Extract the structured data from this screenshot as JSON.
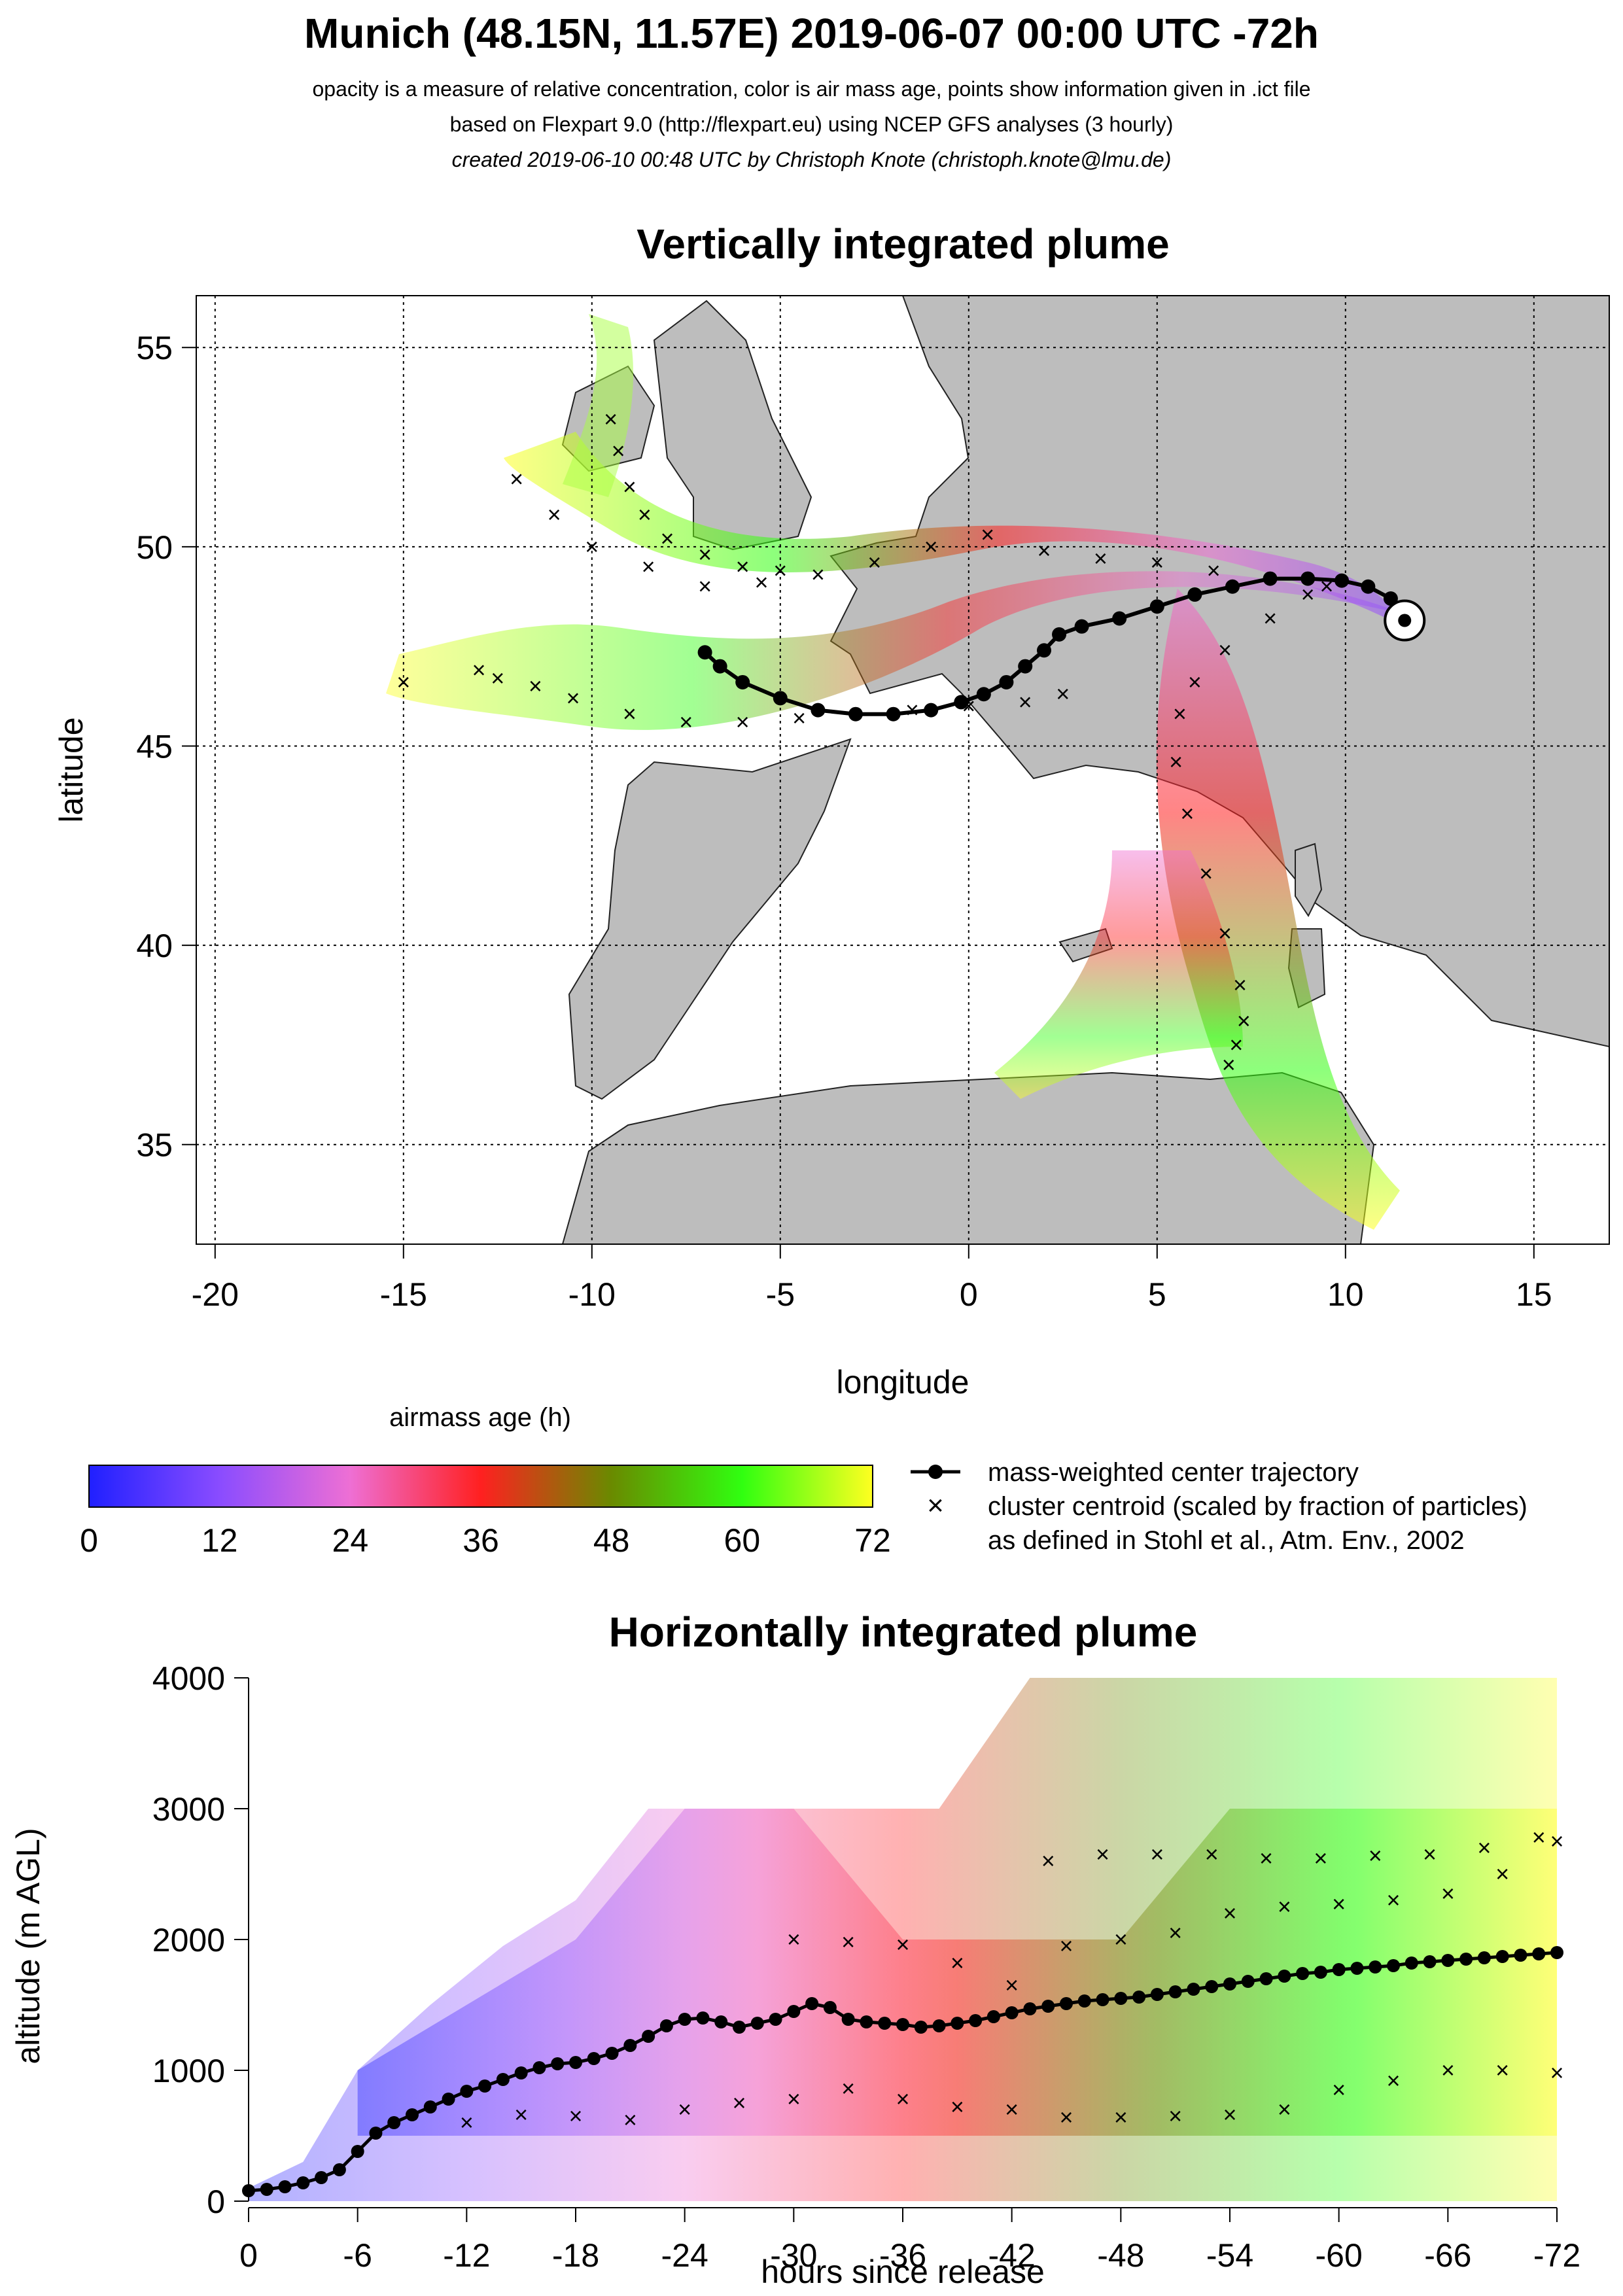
{
  "header": {
    "title": "Munich (48.15N, 11.57E) 2019-06-07 00:00 UTC -72h",
    "line1": "opacity is a measure of relative concentration, color is air mass age, points show information given in .ict file",
    "line2": "based on Flexpart 9.0 (http://flexpart.eu) using NCEP GFS analyses (3 hourly)",
    "line3": "created 2019-06-10 00:48 UTC by Christoph Knote (christoph.knote@lmu.de)"
  },
  "colors": {
    "age_0": "#2020ff",
    "age_12": "#8a4cff",
    "age_24": "#ee6fd4",
    "age_36": "#ff2020",
    "age_48": "#6a8a00",
    "age_60": "#30ff10",
    "age_72": "#ffff20",
    "land": "#bdbdbd",
    "sea": "#ffffff",
    "trajectory": "#000000"
  },
  "legend": {
    "colorbar_title": "airmass age (h)",
    "colorbar_ticks": [
      "0",
      "12",
      "24",
      "36",
      "48",
      "60",
      "72"
    ],
    "trajectory_label": "mass-weighted center trajectory",
    "centroid_label_1": "cluster centroid (scaled by fraction of particles)",
    "centroid_label_2": "as defined in Stohl et al., Atm. Env., 2002"
  },
  "chart_data": [
    {
      "type": "scatter",
      "title": "Vertically integrated plume",
      "xlabel": "longitude",
      "ylabel": "latitude",
      "xlim": [
        -20.5,
        17.0
      ],
      "ylim": [
        32.5,
        56.3
      ],
      "x_ticks": [
        -20,
        -15,
        -10,
        -5,
        0,
        5,
        10,
        15
      ],
      "x_tick_labels": [
        "-20",
        "-15",
        "-10",
        "-5",
        "0",
        "5",
        "10",
        "15"
      ],
      "y_ticks": [
        35,
        40,
        45,
        50,
        55
      ],
      "y_tick_labels": [
        "35",
        "40",
        "45",
        "50",
        "55"
      ],
      "grid": true,
      "release_point": {
        "lon": 11.57,
        "lat": 48.15
      },
      "series": [
        {
          "name": "mass-weighted center trajectory",
          "lon": [
            11.57,
            11.2,
            10.6,
            9.9,
            9.0,
            8.0,
            7.0,
            6.0,
            5.0,
            4.0,
            3.0,
            2.4,
            2.0,
            1.5,
            1.0,
            0.4,
            -0.2,
            -1.0,
            -2.0,
            -3.0,
            -4.0,
            -5.0,
            -6.0,
            -6.6,
            -7.0
          ],
          "lat": [
            48.15,
            48.7,
            49.0,
            49.15,
            49.2,
            49.2,
            49.0,
            48.8,
            48.5,
            48.2,
            48.0,
            47.8,
            47.4,
            47.0,
            46.6,
            46.3,
            46.1,
            45.9,
            45.8,
            45.8,
            45.9,
            46.2,
            46.6,
            47.0,
            47.35
          ]
        },
        {
          "name": "cluster centroid north-west",
          "lon": [
            9.5,
            8.0,
            6.5,
            5.0,
            3.5,
            2.0,
            0.5,
            -1.0,
            -2.5,
            -4.0,
            -5.5,
            -7.0,
            -8.5,
            -10.0,
            -11.0,
            -12.0
          ],
          "lat": [
            49.0,
            49.2,
            49.4,
            49.6,
            49.7,
            49.9,
            50.3,
            50.0,
            49.6,
            49.3,
            49.1,
            49.0,
            49.5,
            50.0,
            50.8,
            51.7
          ]
        },
        {
          "name": "cluster centroid west",
          "lon": [
            2.5,
            1.5,
            0.0,
            -1.5,
            -3.0,
            -4.5,
            -6.0,
            -7.5,
            -9.0,
            -10.5,
            -11.5,
            -12.5,
            -13.0,
            -15.0
          ],
          "lat": [
            46.3,
            46.1,
            46.0,
            45.9,
            45.8,
            45.7,
            45.6,
            45.6,
            45.8,
            46.2,
            46.5,
            46.7,
            46.9,
            46.6
          ]
        },
        {
          "name": "cluster centroid north",
          "lon": [
            -9.5,
            -9.3,
            -9.0,
            -8.6,
            -8.0,
            -7.0,
            -6.0,
            -5.0
          ],
          "lat": [
            53.2,
            52.4,
            51.5,
            50.8,
            50.2,
            49.8,
            49.5,
            49.4
          ]
        },
        {
          "name": "cluster centroid south",
          "lon": [
            9.0,
            8.0,
            6.8,
            6.0,
            5.6,
            5.5,
            5.8,
            6.3,
            6.8,
            7.2,
            7.3,
            7.1,
            6.9
          ],
          "lat": [
            48.8,
            48.2,
            47.4,
            46.6,
            45.8,
            44.6,
            43.3,
            41.8,
            40.3,
            39.0,
            38.1,
            37.5,
            37.0
          ]
        }
      ]
    },
    {
      "type": "scatter",
      "title": "Horizontally integrated plume",
      "xlabel": "hours since release",
      "ylabel": "altitude (m AGL)",
      "xlim": [
        0,
        -72
      ],
      "ylim": [
        0,
        4000
      ],
      "x_ticks": [
        0,
        -6,
        -12,
        -18,
        -24,
        -30,
        -36,
        -42,
        -48,
        -54,
        -60,
        -66,
        -72
      ],
      "x_tick_labels": [
        "0",
        "-6",
        "-12",
        "-18",
        "-24",
        "-30",
        "-36",
        "-42",
        "-48",
        "-54",
        "-60",
        "-66",
        "-72"
      ],
      "y_ticks": [
        0,
        1000,
        2000,
        3000,
        4000
      ],
      "y_tick_labels": [
        "0",
        "1000",
        "2000",
        "3000",
        "4000"
      ],
      "grid": false,
      "series": [
        {
          "name": "mass-weighted center trajectory",
          "x": [
            0,
            -1,
            -2,
            -3,
            -4,
            -5,
            -6,
            -7,
            -8,
            -9,
            -10,
            -11,
            -12,
            -13,
            -14,
            -15,
            -16,
            -17,
            -18,
            -19,
            -20,
            -21,
            -22,
            -23,
            -24,
            -25,
            -26,
            -27,
            -28,
            -29,
            -30,
            -31,
            -32,
            -33,
            -34,
            -35,
            -36,
            -37,
            -38,
            -39,
            -40,
            -41,
            -42,
            -43,
            -44,
            -45,
            -46,
            -47,
            -48,
            -49,
            -50,
            -51,
            -52,
            -53,
            -54,
            -55,
            -56,
            -57,
            -58,
            -59,
            -60,
            -61,
            -62,
            -63,
            -64,
            -65,
            -66,
            -67,
            -68,
            -69,
            -70,
            -71,
            -72
          ],
          "y": [
            80,
            90,
            110,
            140,
            180,
            240,
            380,
            520,
            600,
            660,
            720,
            780,
            840,
            880,
            930,
            980,
            1020,
            1050,
            1060,
            1090,
            1130,
            1190,
            1260,
            1340,
            1390,
            1400,
            1370,
            1330,
            1360,
            1390,
            1450,
            1510,
            1480,
            1390,
            1370,
            1360,
            1350,
            1330,
            1340,
            1360,
            1380,
            1410,
            1440,
            1470,
            1490,
            1510,
            1530,
            1540,
            1550,
            1560,
            1580,
            1600,
            1620,
            1640,
            1660,
            1680,
            1700,
            1720,
            1740,
            1750,
            1770,
            1780,
            1790,
            1800,
            1820,
            1830,
            1840,
            1850,
            1860,
            1870,
            1880,
            1890,
            1900
          ]
        },
        {
          "name": "cluster centroid upper",
          "x": [
            -30,
            -33,
            -36,
            -39,
            -42,
            -45,
            -48,
            -51,
            -54,
            -57,
            -60,
            -63,
            -66,
            -69,
            -72
          ],
          "y": [
            2000,
            1980,
            1960,
            1820,
            1650,
            1950,
            2000,
            2050,
            2200,
            2250,
            2270,
            2300,
            2350,
            2500,
            2750
          ]
        },
        {
          "name": "cluster centroid top",
          "x": [
            -44,
            -47,
            -50,
            -53,
            -56,
            -59,
            -62,
            -65,
            -68,
            -71
          ],
          "y": [
            2600,
            2650,
            2650,
            2650,
            2620,
            2620,
            2640,
            2650,
            2700,
            2780
          ]
        },
        {
          "name": "cluster centroid low",
          "x": [
            -12,
            -15,
            -18,
            -21,
            -24,
            -27,
            -30,
            -33,
            -36,
            -39,
            -42,
            -45,
            -48,
            -51,
            -54,
            -57,
            -60,
            -63,
            -66,
            -69,
            -72
          ],
          "y": [
            600,
            660,
            650,
            620,
            700,
            750,
            780,
            860,
            780,
            720,
            700,
            640,
            640,
            650,
            660,
            700,
            850,
            920,
            1000,
            1000,
            980
          ]
        }
      ]
    }
  ]
}
